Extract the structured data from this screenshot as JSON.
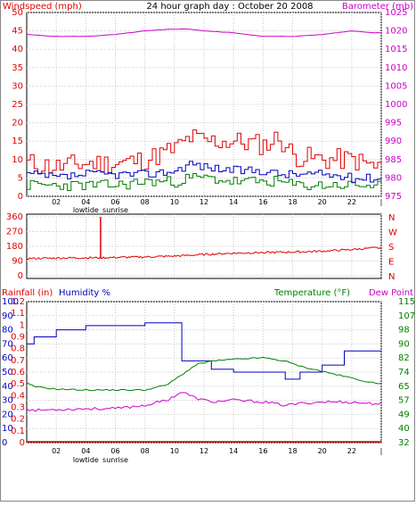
{
  "colors": {
    "wind": "#e00000",
    "wind_avg": "#0000c0",
    "wind_low": "#008000",
    "barometer": "#cc00cc",
    "direction": "#e00000",
    "rain": "#e00000",
    "humidity": "#0000c0",
    "temperature": "#008000",
    "dewpoint": "#cc00cc",
    "grid": "#c8c8c8",
    "frame": "#000000"
  },
  "x_ticks": [
    "02",
    "04",
    "06",
    "08",
    "10",
    "12",
    "14",
    "16",
    "18",
    "20",
    "22",
    "|"
  ],
  "events": [
    "lowtide",
    "sunrise"
  ],
  "chart_data": [
    {
      "type": "line",
      "title": "24 hour graph day : October 20 2008",
      "ylabel_left": "Windspeed (mph)",
      "ylabel_right": "Barometer (mb)",
      "ylim_left": [
        0,
        50
      ],
      "ylim_right": [
        975,
        1025
      ],
      "yticks_left": [
        "0",
        "5",
        "10",
        "15",
        "20",
        "25",
        "30",
        "35",
        "40",
        "45",
        "50"
      ],
      "yticks_right": [
        "975",
        "980",
        "985",
        "990",
        "995",
        "1000",
        "1005",
        "1010",
        "1015",
        "1020",
        "1025"
      ],
      "x": [
        0,
        2,
        4,
        6,
        8,
        10,
        11,
        12,
        14,
        16,
        17,
        18,
        20,
        22,
        23.5
      ],
      "series": [
        {
          "key": "wind_gust",
          "values": [
            9,
            8,
            9,
            9,
            10,
            13,
            16,
            15,
            15,
            14,
            16,
            11,
            10,
            10,
            8
          ]
        },
        {
          "key": "wind_avg",
          "values": [
            6,
            5,
            6,
            6,
            6,
            7,
            9,
            8,
            7,
            7,
            6,
            6,
            6,
            5,
            5
          ]
        },
        {
          "key": "wind_low",
          "values": [
            3,
            3,
            3,
            3,
            4,
            4,
            5,
            5,
            4,
            4,
            4,
            3,
            3,
            3,
            3
          ]
        },
        {
          "key": "barometer",
          "values": [
            1019,
            1018.5,
            1018.5,
            1019,
            1020,
            1020.5,
            1020.5,
            1020,
            1019.5,
            1018.5,
            1018.5,
            1018.5,
            1019,
            1020,
            1019.5
          ]
        }
      ]
    },
    {
      "type": "line",
      "yticks_left": [
        "0",
        "90",
        "180",
        "270",
        "360"
      ],
      "yticks_right": [
        "N",
        "E",
        "S",
        "W",
        "N"
      ],
      "ylim": [
        0,
        360
      ],
      "x": [
        0,
        2,
        4,
        5,
        6,
        8,
        10,
        12,
        14,
        16,
        18,
        20,
        22,
        23.5
      ],
      "series": [
        {
          "key": "wind_direction",
          "values": [
            105,
            108,
            110,
            110,
            112,
            115,
            120,
            130,
            138,
            142,
            145,
            150,
            160,
            170
          ]
        }
      ],
      "spike": {
        "x": 5,
        "value": 360
      }
    },
    {
      "type": "line",
      "ylabel_rain": "Rainfall (in)",
      "ylabel_humidity": "Humidity %",
      "ylabel_temperature": "Temperature (°F)",
      "ylabel_dewpoint": "Dew Point",
      "ylim_humidity": [
        0,
        100
      ],
      "ylim_rain": [
        0,
        1.2
      ],
      "ylim_temperature": [
        32,
        115
      ],
      "yticks_humidity": [
        "0",
        "10",
        "20",
        "30",
        "40",
        "50",
        "60",
        "70",
        "80",
        "90",
        "100"
      ],
      "yticks_rain": [
        "0",
        "0.1",
        "0.2",
        "0.3",
        "0.4",
        "0.5",
        "0.6",
        "0.7",
        "0.8",
        "0.9",
        "1",
        "1.1",
        "1.2"
      ],
      "yticks_temperature": [
        "32",
        "40",
        "49",
        "57",
        "65",
        "74",
        "82",
        "90",
        "98",
        "107",
        "115"
      ],
      "x": [
        0,
        0.5,
        2,
        4,
        6,
        8,
        9.5,
        10.5,
        11.5,
        12.5,
        14,
        16,
        17.5,
        18.5,
        20,
        21.5,
        23.5
      ],
      "series": [
        {
          "key": "humidity",
          "values": [
            70,
            75,
            80,
            83,
            83,
            85,
            85,
            58,
            58,
            52,
            50,
            50,
            45,
            50,
            55,
            65,
            65
          ]
        },
        {
          "key": "temperature",
          "values": [
            67,
            65,
            63.5,
            63,
            63,
            63,
            66,
            72,
            78,
            80,
            81,
            82,
            80,
            77,
            74,
            71,
            67
          ]
        },
        {
          "key": "dewpoint",
          "values": [
            52,
            51,
            51.5,
            52,
            52,
            54,
            57,
            62,
            58,
            56,
            57,
            56,
            54,
            55,
            56,
            56,
            55
          ]
        },
        {
          "key": "rainfall",
          "values": [
            0,
            0,
            0,
            0,
            0,
            0,
            0,
            0,
            0,
            0,
            0,
            0,
            0,
            0,
            0,
            0,
            0
          ]
        }
      ]
    }
  ]
}
